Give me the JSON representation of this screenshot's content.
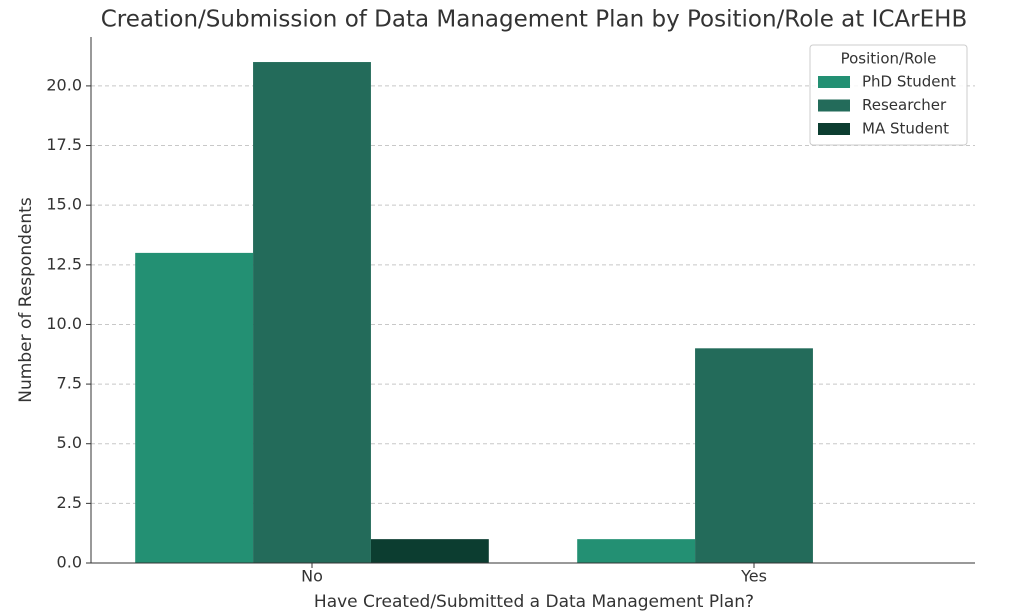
{
  "chart_data": {
    "type": "bar",
    "title": "Creation/Submission of Data Management Plan by Position/Role at ICArEHB",
    "xlabel": "Have Created/Submitted a Data Management Plan?",
    "ylabel": "Number of Respondents",
    "categories": [
      "No",
      "Yes"
    ],
    "series": [
      {
        "name": "PhD Student",
        "color": "#239073",
        "values": [
          13,
          1
        ]
      },
      {
        "name": "Researcher",
        "color": "#236b5a",
        "values": [
          21,
          9
        ]
      },
      {
        "name": "MA Student",
        "color": "#0c3d30",
        "values": [
          1,
          0
        ]
      }
    ],
    "ylim": [
      0,
      22.05
    ],
    "yticks": [
      {
        "value": 0,
        "label": "0.0"
      },
      2.5,
      {
        "value": 5,
        "label": "5.0"
      },
      7.5,
      {
        "value": 10,
        "label": "10.0"
      },
      12.5,
      {
        "value": 15,
        "label": "15.0"
      },
      17.5,
      {
        "value": 20,
        "label": "20.0"
      }
    ],
    "grid": true,
    "legend": {
      "title": "Position/Role",
      "position": "upper right"
    }
  }
}
